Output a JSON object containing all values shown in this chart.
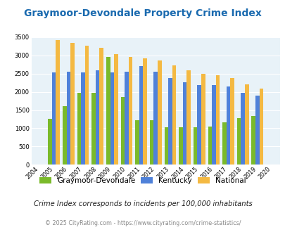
{
  "title": "Graymoor-Devondale Property Crime Index",
  "years": [
    "2004",
    "2005",
    "2006",
    "2007",
    "2008",
    "2009",
    "2010",
    "2011",
    "2012",
    "2013",
    "2014",
    "2015",
    "2016",
    "2017",
    "2018",
    "2019",
    "2020"
  ],
  "graymoor": [
    0,
    1250,
    1600,
    1975,
    1980,
    2950,
    1850,
    1220,
    1220,
    1030,
    1020,
    1020,
    1040,
    1160,
    1285,
    1340,
    0
  ],
  "kentucky": [
    0,
    2530,
    2545,
    2540,
    2590,
    2540,
    2545,
    2700,
    2550,
    2380,
    2270,
    2180,
    2185,
    2145,
    1965,
    1895,
    0
  ],
  "national": [
    0,
    3420,
    3340,
    3270,
    3210,
    3040,
    2950,
    2910,
    2860,
    2730,
    2595,
    2490,
    2450,
    2380,
    2195,
    2095,
    0
  ],
  "graymoor_color": "#7aba2a",
  "kentucky_color": "#4f81d9",
  "national_color": "#f4b942",
  "plot_bg": "#e8f2f8",
  "subtitle": "Crime Index corresponds to incidents per 100,000 inhabitants",
  "footer": "© 2025 CityRating.com - https://www.cityrating.com/crime-statistics/",
  "ylim": [
    0,
    3500
  ],
  "yticks": [
    0,
    500,
    1000,
    1500,
    2000,
    2500,
    3000,
    3500
  ],
  "legend_labels": [
    "Graymoor-Devondale",
    "Kentucky",
    "National"
  ],
  "title_color": "#1a6aaf",
  "subtitle_color": "#222222",
  "footer_color": "#888888"
}
